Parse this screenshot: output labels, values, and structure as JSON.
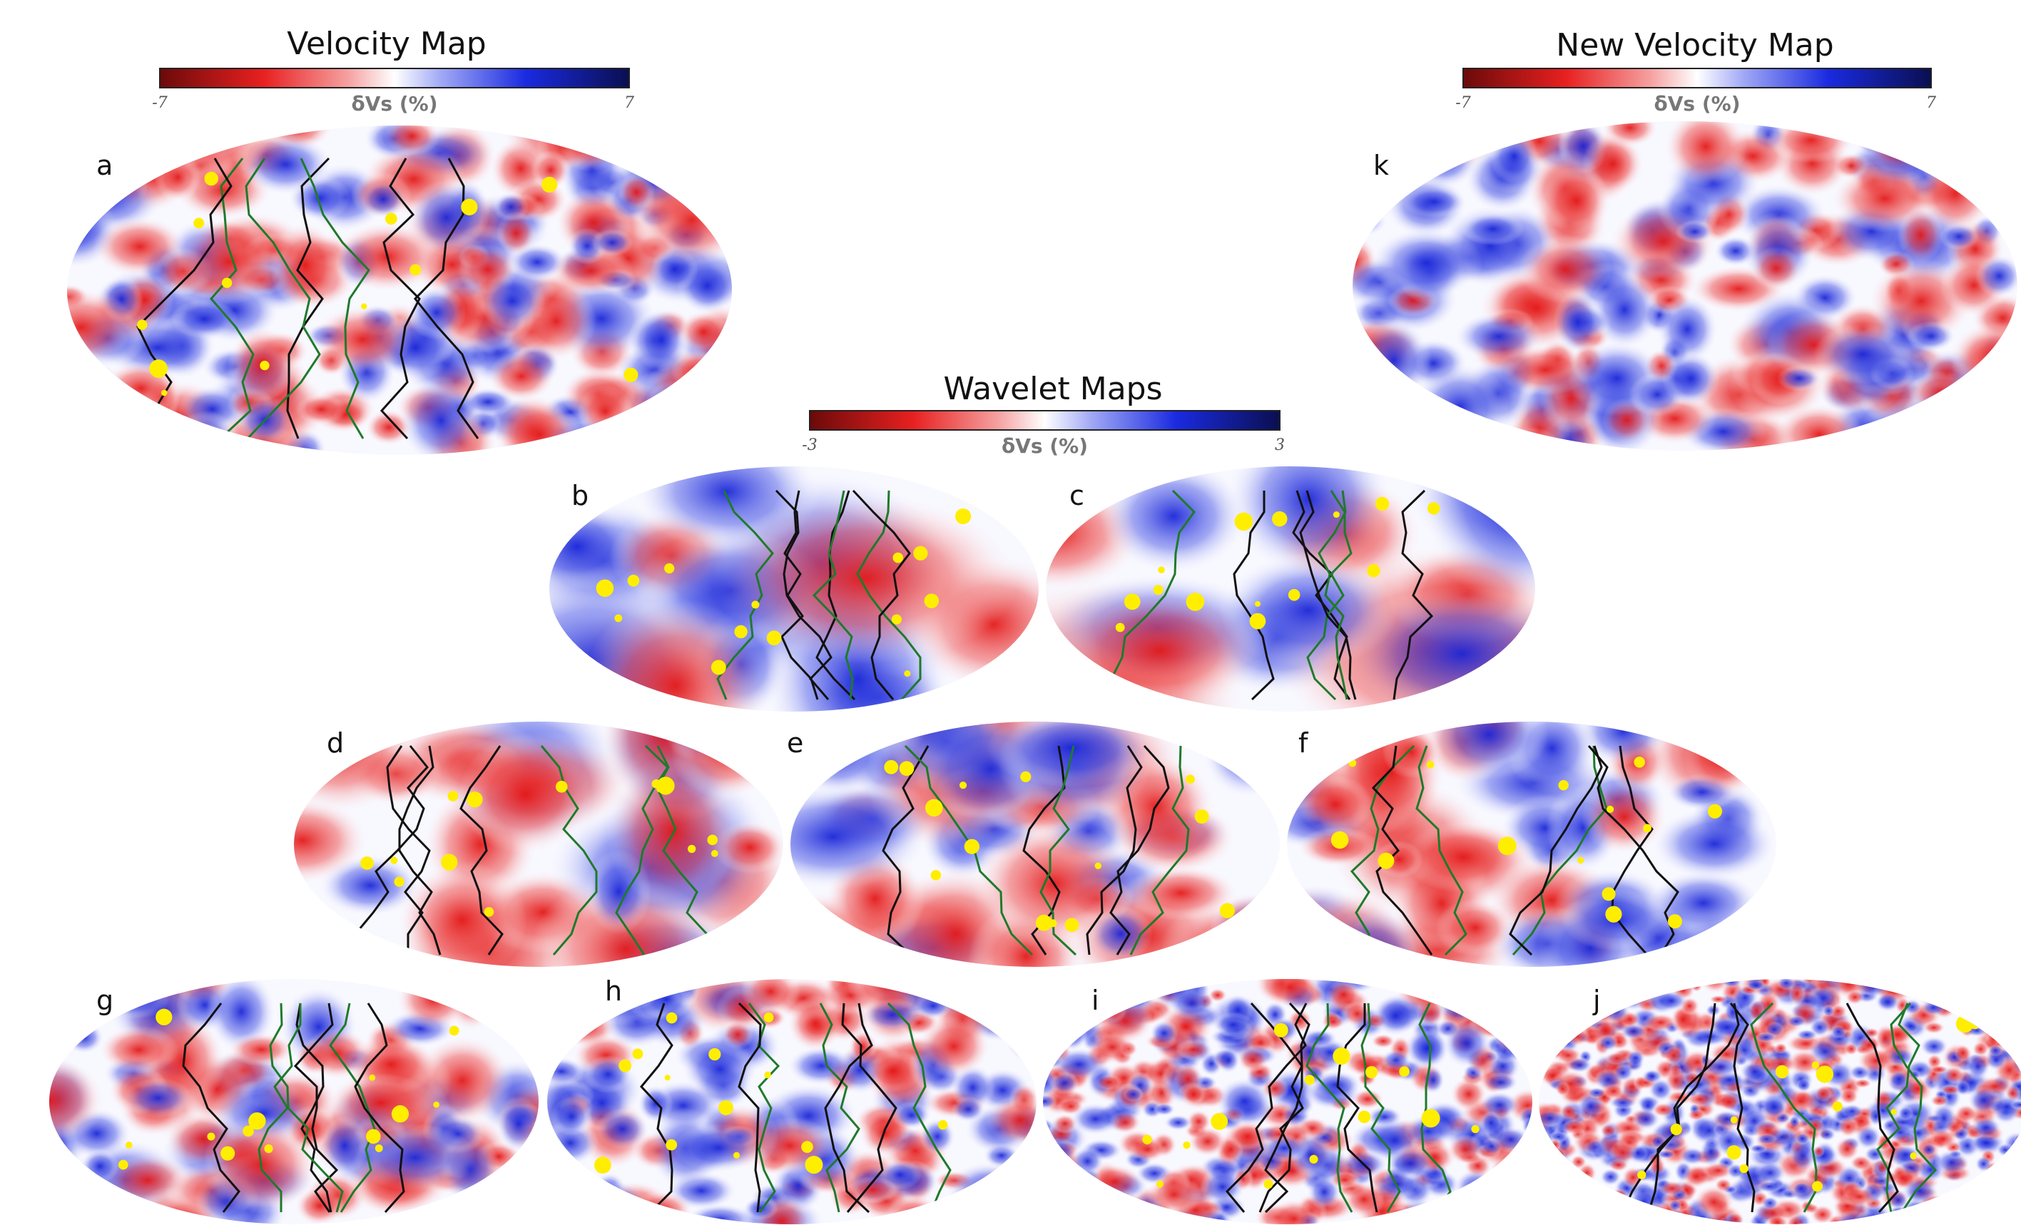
{
  "velocity_map": {
    "title": "Velocity Map",
    "colorbar": {
      "min": -7,
      "max": 7,
      "label": "δVs (%)"
    },
    "panel": "a"
  },
  "new_velocity_map": {
    "title": "New Velocity Map",
    "colorbar": {
      "min": -7,
      "max": 7,
      "label": "δVs (%)"
    },
    "panel": "k"
  },
  "wavelet_maps": {
    "title": "Wavelet Maps",
    "colorbar": {
      "min": -3,
      "max": 3,
      "label": "δVs (%)"
    },
    "panels": [
      "b",
      "c",
      "d",
      "e",
      "f",
      "g",
      "h",
      "i",
      "j"
    ]
  }
}
